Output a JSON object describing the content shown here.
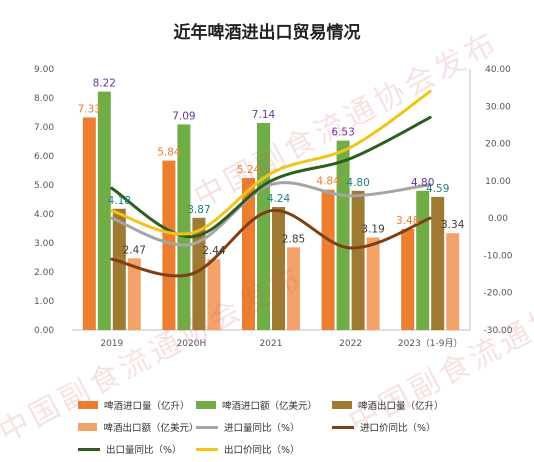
{
  "chart_data": {
    "type": "bar",
    "title": "近年啤酒进出口贸易情况",
    "categories": [
      "2019",
      "2020H",
      "2021",
      "2022",
      "2023（1-9月）"
    ],
    "left_axis": {
      "ylim": [
        0,
        9
      ],
      "ticks": [
        "0.00",
        "1.00",
        "2.00",
        "3.00",
        "4.00",
        "5.00",
        "6.00",
        "7.00",
        "8.00",
        "9.00"
      ]
    },
    "right_axis": {
      "ylim": [
        -30,
        40
      ],
      "ticks": [
        "-30.00",
        "-20.00",
        "-10.00",
        "0.00",
        "10.00",
        "20.00",
        "30.00",
        "40.00"
      ]
    },
    "bar_series": [
      {
        "name": "啤酒进口量（亿升）",
        "color": "#ED7D31",
        "values": [
          7.33,
          5.84,
          5.24,
          4.84,
          3.48
        ],
        "labels": [
          "7.33",
          "5.84",
          "5.24",
          "4.84",
          "3.48"
        ]
      },
      {
        "name": "啤酒进口额（亿美元）",
        "color": "#70AD47",
        "values": [
          8.22,
          7.09,
          7.14,
          6.53,
          4.8
        ],
        "labels": [
          "8.22",
          "7.09",
          "7.14",
          "6.53",
          "4.80"
        ]
      },
      {
        "name": "啤酒出口量（亿升）",
        "color": "#9E7A33",
        "values": [
          4.18,
          3.87,
          4.24,
          4.8,
          4.59
        ],
        "labels": [
          "4.18",
          "3.87",
          "4.24",
          "4.80",
          "4.59"
        ]
      },
      {
        "name": "啤酒出口额（亿美元）",
        "color": "#F4A26B",
        "values": [
          2.47,
          2.44,
          2.85,
          3.19,
          3.34
        ],
        "labels": [
          "2.47",
          "2.44",
          "2.85",
          "3.19",
          "3.34"
        ]
      }
    ],
    "line_series": [
      {
        "name": "进口量同比（%）",
        "color": "#A5A5A5",
        "values": [
          0,
          -7,
          9,
          6,
          9
        ]
      },
      {
        "name": "进口价同比（%）",
        "color": "#7F3F12",
        "values": [
          -11,
          -15,
          2,
          -8,
          0
        ]
      },
      {
        "name": "出口量同比（%）",
        "color": "#2F5D1E",
        "values": [
          8,
          -5,
          10,
          16,
          27
        ]
      },
      {
        "name": "出口价同比（%）",
        "color": "#F0C419",
        "values": [
          2,
          -4,
          12,
          19,
          34
        ]
      }
    ],
    "legend_placement": "bottom",
    "grid": false
  },
  "watermark": "中国副食流通协会发布"
}
